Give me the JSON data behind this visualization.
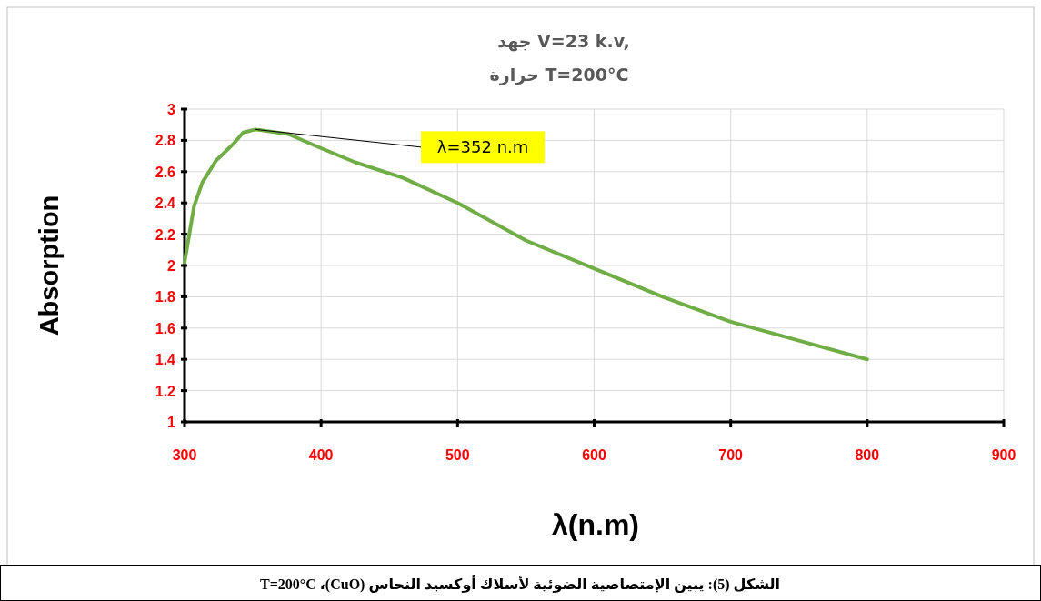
{
  "chart_data": {
    "type": "line",
    "title": "جهد V=23 k.v,",
    "subtitle": "حرارة  T=200°C",
    "xlabel": "λ(n.m)",
    "ylabel": "Absorption",
    "x": [
      300,
      307,
      313,
      323,
      336,
      343,
      352,
      376,
      400,
      425,
      460,
      500,
      550,
      600,
      650,
      700,
      750,
      800
    ],
    "series": [
      {
        "color": "#70ad47",
        "values": [
          2.02,
          2.38,
          2.53,
          2.67,
          2.78,
          2.85,
          2.87,
          2.84,
          2.75,
          2.66,
          2.56,
          2.4,
          2.16,
          1.98,
          1.8,
          1.64,
          1.52,
          1.4
        ]
      }
    ],
    "xlim": [
      300,
      900
    ],
    "ylim": [
      1,
      3
    ],
    "xticks": [
      300,
      400,
      500,
      600,
      700,
      800,
      900
    ],
    "yticks": [
      1,
      1.2,
      1.4,
      1.6,
      1.8,
      2,
      2.2,
      2.4,
      2.6,
      2.8,
      3
    ],
    "grid": true,
    "marker": "none",
    "line_style": "solid",
    "annotations": [
      {
        "text": "λ=352 n.m",
        "x": 352,
        "y": 2.87
      },
      "الشكل (5): يبين الإمتصاصية الضوئية لأسلاك أوكسيد النحاس (CuO)، T=200°C"
    ]
  }
}
